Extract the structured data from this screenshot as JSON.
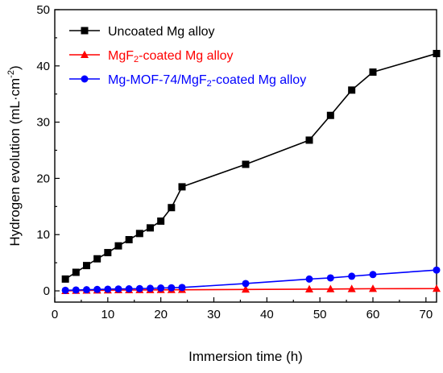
{
  "chart_data": {
    "type": "line",
    "xlabel": "Immersion time (h)",
    "ylabel_main": "Hydrogen evolution (mL·cm",
    "ylabel_sup": "-2",
    "ylabel_close": ")",
    "xlim": [
      0,
      72
    ],
    "ylim": [
      -2,
      50
    ],
    "xticks": [
      0,
      10,
      20,
      30,
      40,
      50,
      60,
      70
    ],
    "yticks": [
      0,
      10,
      20,
      30,
      40,
      50
    ],
    "grid": false,
    "legend_position": "top-left",
    "series": [
      {
        "name": "Uncoated Mg alloy",
        "legend_parts": [
          "Uncoated Mg alloy"
        ],
        "color": "#000000",
        "marker": "square",
        "x": [
          2,
          4,
          6,
          8,
          10,
          12,
          14,
          16,
          18,
          20,
          22,
          24,
          36,
          48,
          52,
          56,
          60,
          72
        ],
        "y": [
          2.1,
          3.3,
          4.5,
          5.7,
          6.8,
          8.0,
          9.1,
          10.2,
          11.2,
          12.4,
          14.8,
          18.5,
          22.5,
          26.8,
          31.2,
          35.7,
          38.9,
          42.2
        ]
      },
      {
        "name": "MgF2-coated Mg alloy",
        "legend_parts": [
          "MgF",
          "2",
          "-coated Mg alloy"
        ],
        "color": "#ff0000",
        "marker": "triangle",
        "x": [
          2,
          4,
          6,
          8,
          10,
          12,
          14,
          16,
          18,
          20,
          22,
          24,
          36,
          48,
          52,
          56,
          60,
          72
        ],
        "y": [
          0.0,
          0.05,
          0.08,
          0.1,
          0.12,
          0.14,
          0.15,
          0.16,
          0.17,
          0.18,
          0.19,
          0.2,
          0.25,
          0.3,
          0.32,
          0.35,
          0.38,
          0.4
        ]
      },
      {
        "name": "Mg-MOF-74/MgF2-coated Mg alloy",
        "legend_parts": [
          "Mg-MOF-74/MgF",
          "2",
          "-coated Mg alloy"
        ],
        "color": "#0000ff",
        "marker": "circle",
        "x": [
          2,
          4,
          6,
          8,
          10,
          12,
          14,
          16,
          18,
          20,
          22,
          24,
          36,
          48,
          52,
          56,
          60,
          72
        ],
        "y": [
          0.1,
          0.15,
          0.2,
          0.25,
          0.3,
          0.33,
          0.36,
          0.4,
          0.45,
          0.5,
          0.55,
          0.6,
          1.3,
          2.1,
          2.3,
          2.6,
          2.9,
          3.7
        ]
      }
    ]
  }
}
